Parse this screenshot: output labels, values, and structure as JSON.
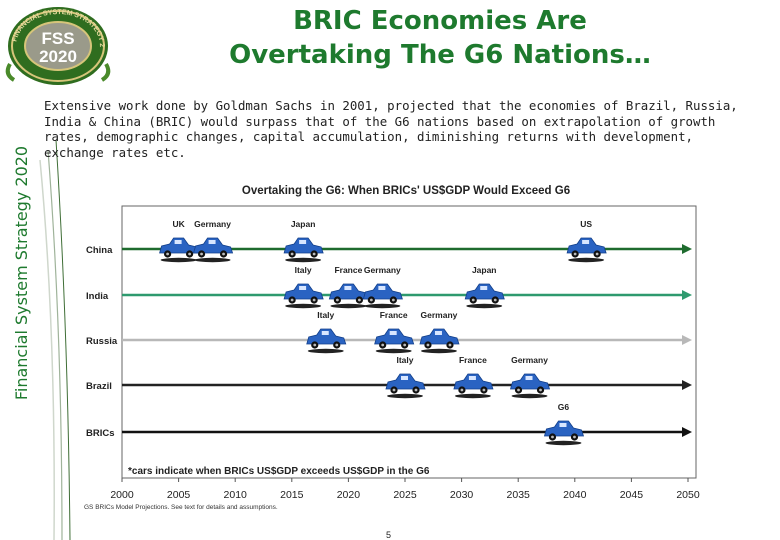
{
  "header": {
    "title_line1": "BRIC Economies Are",
    "title_line2": "Overtaking The G6 Nations…"
  },
  "logo": {
    "arc_text": "FINANCIAL SYSTEM STRATEGY 2020",
    "text_top": "FSS",
    "text_bottom": "2020"
  },
  "sidebar": {
    "label": "Financial System Strategy 2020"
  },
  "intro": {
    "text": "Extensive work done by Goldman Sachs in 2001, projected that the economies of Brazil, Russia, India & China (BRIC) would surpass that of the G6 nations based on extrapolation of growth rates, demographic changes, capital accumulation, diminishing returns with development, exchange rates etc."
  },
  "chart_data": {
    "type": "scatter",
    "title": "Overtaking the G6: When BRICs' US$GDP Would Exceed G6",
    "x_ticks": [
      2000,
      2005,
      2010,
      2015,
      2020,
      2025,
      2030,
      2035,
      2040,
      2045,
      2050
    ],
    "xlim": [
      2000,
      2050
    ],
    "rows": [
      "China",
      "India",
      "Russia",
      "Brazil",
      "BRICs"
    ],
    "row_colors": [
      "#1e6b2e",
      "#2e9a6e",
      "#b8b8b8",
      "#222222",
      "#111111"
    ],
    "events": [
      {
        "row": "China",
        "label": "UK",
        "year": 2005
      },
      {
        "row": "China",
        "label": "Germany",
        "year": 2008
      },
      {
        "row": "China",
        "label": "Japan",
        "year": 2016
      },
      {
        "row": "China",
        "label": "US",
        "year": 2041
      },
      {
        "row": "India",
        "label": "Italy",
        "year": 2016
      },
      {
        "row": "India",
        "label": "France",
        "year": 2020
      },
      {
        "row": "India",
        "label": "Germany",
        "year": 2023
      },
      {
        "row": "India",
        "label": "Japan",
        "year": 2032
      },
      {
        "row": "Russia",
        "label": "Italy",
        "year": 2018
      },
      {
        "row": "Russia",
        "label": "France",
        "year": 2024
      },
      {
        "row": "Russia",
        "label": "Germany",
        "year": 2028
      },
      {
        "row": "Brazil",
        "label": "Italy",
        "year": 2025
      },
      {
        "row": "Brazil",
        "label": "France",
        "year": 2031
      },
      {
        "row": "Brazil",
        "label": "Germany",
        "year": 2036
      },
      {
        "row": "BRICs",
        "label": "G6",
        "year": 2039
      }
    ],
    "footnote": "*cars indicate when BRICs US$GDP exceeds US$GDP in the G6",
    "source": "GS BRICs Model Projections. See text for details and assumptions."
  },
  "footer": {
    "page_number": "5"
  }
}
